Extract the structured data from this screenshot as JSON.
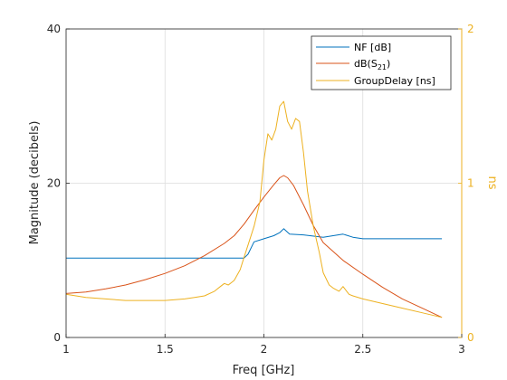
{
  "chart_data": {
    "type": "line",
    "xlabel": "Freq [GHz]",
    "ylabel_left": "Magnitude (decibels)",
    "ylabel_right": "ns",
    "xlim": [
      1,
      3
    ],
    "ylim_left": [
      0,
      40
    ],
    "ylim_right": [
      0,
      2
    ],
    "x_ticks": [
      "1",
      "1.5",
      "2",
      "2.5",
      "3"
    ],
    "x_tick_values": [
      1,
      1.5,
      2,
      2.5,
      3
    ],
    "y_left_ticks": [
      "0",
      "20",
      "40"
    ],
    "y_left_tick_values": [
      0,
      20,
      40
    ],
    "y_right_ticks": [
      "0",
      "1",
      "2"
    ],
    "y_right_tick_values": [
      0,
      1,
      2
    ],
    "grid": true,
    "legend_position": "top-right",
    "legend": {
      "nf": "NF [dB]",
      "s21_prefix": "dB(S",
      "s21_sub": "21",
      "s21_suffix": ")",
      "gd": "GroupDelay [ns]"
    },
    "series": [
      {
        "key": "nf",
        "axis": "left",
        "color": "#0072BD",
        "x": [
          1.0,
          1.5,
          1.9,
          1.92,
          1.95,
          2.0,
          2.05,
          2.08,
          2.1,
          2.13,
          2.2,
          2.3,
          2.4,
          2.45,
          2.5,
          2.7,
          2.9
        ],
        "y": [
          10.3,
          10.3,
          10.3,
          10.8,
          12.4,
          12.8,
          13.2,
          13.6,
          14.1,
          13.4,
          13.3,
          13.0,
          13.4,
          13.0,
          12.8,
          12.8,
          12.8
        ]
      },
      {
        "key": "s21",
        "axis": "left",
        "color": "#D95319",
        "x": [
          1.0,
          1.1,
          1.2,
          1.3,
          1.4,
          1.5,
          1.6,
          1.7,
          1.8,
          1.85,
          1.9,
          1.95,
          2.0,
          2.05,
          2.08,
          2.1,
          2.12,
          2.15,
          2.2,
          2.25,
          2.3,
          2.4,
          2.5,
          2.6,
          2.7,
          2.8,
          2.9
        ],
        "y": [
          5.7,
          5.9,
          6.3,
          6.8,
          7.5,
          8.3,
          9.3,
          10.6,
          12.2,
          13.2,
          14.7,
          16.5,
          18.2,
          19.8,
          20.7,
          21.0,
          20.7,
          19.7,
          17.2,
          14.5,
          12.3,
          10.0,
          8.2,
          6.5,
          5.0,
          3.8,
          2.6
        ]
      },
      {
        "key": "gd",
        "axis": "right",
        "color": "#EDB120",
        "x": [
          1.0,
          1.1,
          1.2,
          1.3,
          1.4,
          1.5,
          1.6,
          1.65,
          1.7,
          1.75,
          1.78,
          1.8,
          1.82,
          1.85,
          1.88,
          1.9,
          1.92,
          1.95,
          1.98,
          2.0,
          2.02,
          2.04,
          2.06,
          2.08,
          2.1,
          2.12,
          2.14,
          2.16,
          2.18,
          2.2,
          2.22,
          2.25,
          2.28,
          2.3,
          2.33,
          2.35,
          2.38,
          2.4,
          2.43,
          2.45,
          2.5,
          2.6,
          2.7,
          2.8,
          2.9
        ],
        "y": [
          0.28,
          0.26,
          0.25,
          0.24,
          0.24,
          0.24,
          0.25,
          0.26,
          0.27,
          0.3,
          0.33,
          0.35,
          0.34,
          0.37,
          0.44,
          0.52,
          0.6,
          0.72,
          0.88,
          1.15,
          1.32,
          1.28,
          1.35,
          1.5,
          1.53,
          1.4,
          1.35,
          1.42,
          1.4,
          1.2,
          0.95,
          0.72,
          0.55,
          0.42,
          0.34,
          0.32,
          0.3,
          0.33,
          0.28,
          0.27,
          0.25,
          0.22,
          0.19,
          0.16,
          0.13
        ]
      }
    ]
  }
}
